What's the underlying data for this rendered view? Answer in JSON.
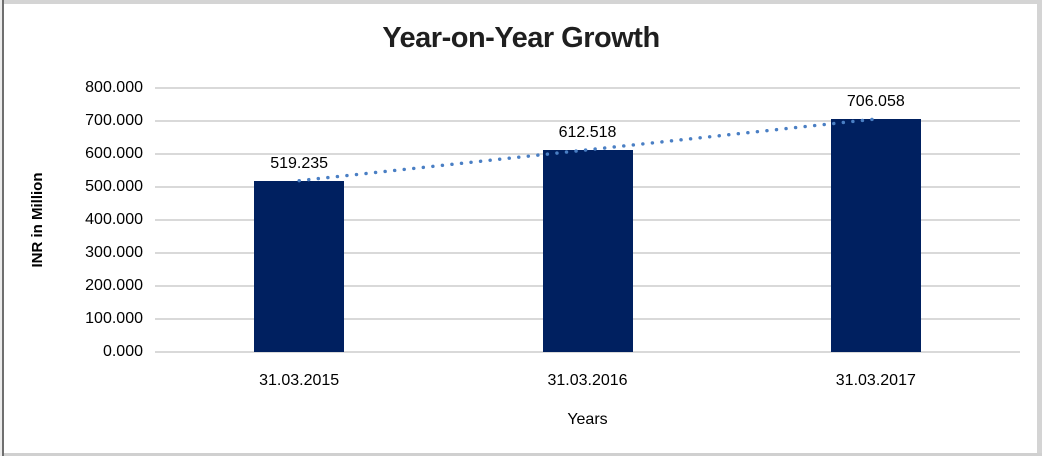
{
  "window": {
    "background": "#ffffff",
    "frame_color": "#d4d4d4",
    "left_edge_color": "#6f6f6f"
  },
  "chart_data": {
    "type": "bar",
    "title": "Year-on-Year Growth",
    "xlabel": "Years",
    "ylabel": "INR in Million",
    "categories": [
      "31.03.2015",
      "31.03.2016",
      "31.03.2017"
    ],
    "values": [
      519.235,
      612.518,
      706.058
    ],
    "data_labels": [
      "519.235",
      "612.518",
      "706.058"
    ],
    "y_ticks_top_to_bottom": [
      "800.000",
      "700.000",
      "600.000",
      "500.000",
      "400.000",
      "300.000",
      "200.000",
      "100.000",
      "0.000"
    ],
    "ylim": [
      0,
      800
    ],
    "grid": true,
    "legend": "none",
    "trendline": {
      "type": "linear",
      "style": "dotted"
    },
    "colors": {
      "bar": "#002060",
      "gridline": "#d9d9d9",
      "trendline": "#4a7fc4",
      "text": "#000000",
      "title": "#1f1f1f"
    }
  }
}
